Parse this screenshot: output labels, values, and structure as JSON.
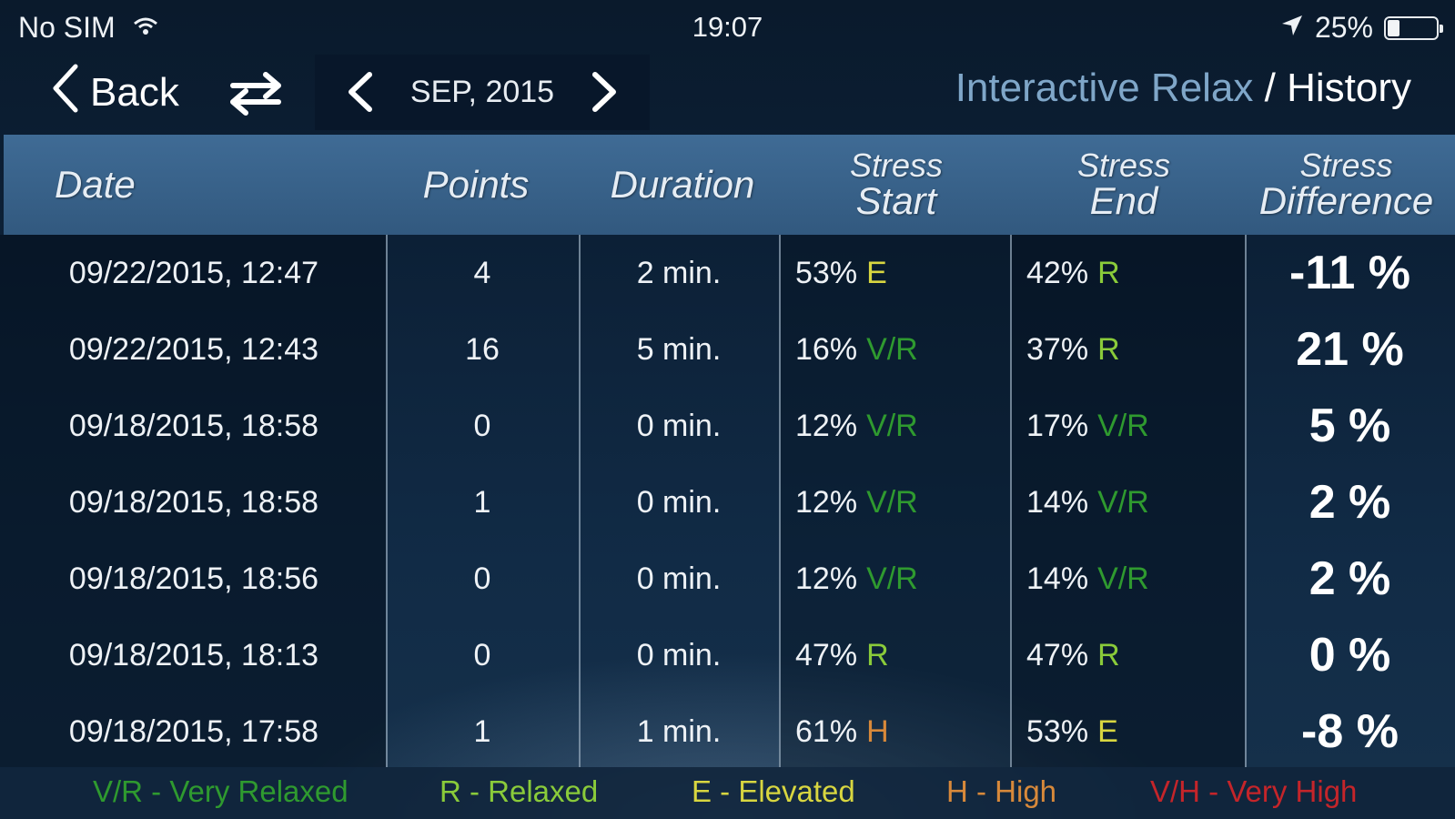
{
  "status_bar": {
    "carrier": "No SIM",
    "time": "19:07",
    "battery": "25%",
    "battery_level": 0.25
  },
  "nav": {
    "back_label": "Back",
    "month": "SEP, 2015",
    "app_name": "Interactive Relax",
    "separator": " / ",
    "section": "History"
  },
  "table": {
    "headers": {
      "date": "Date",
      "points": "Points",
      "duration": "Duration",
      "stress_start": [
        "Stress",
        "Start"
      ],
      "stress_end": [
        "Stress",
        "End"
      ],
      "stress_difference": [
        "Stress",
        "Difference"
      ]
    },
    "rows": [
      {
        "date": "09/22/2015, 12:47",
        "points": "4",
        "duration": "2 min.",
        "start_pct": "53%",
        "start_level": "E",
        "end_pct": "42%",
        "end_level": "R",
        "difference": "-11 %"
      },
      {
        "date": "09/22/2015, 12:43",
        "points": "16",
        "duration": "5 min.",
        "start_pct": "16%",
        "start_level": "V/R",
        "end_pct": "37%",
        "end_level": "R",
        "difference": "21 %"
      },
      {
        "date": "09/18/2015, 18:58",
        "points": "0",
        "duration": "0 min.",
        "start_pct": "12%",
        "start_level": "V/R",
        "end_pct": "17%",
        "end_level": "V/R",
        "difference": "5 %"
      },
      {
        "date": "09/18/2015, 18:58",
        "points": "1",
        "duration": "0 min.",
        "start_pct": "12%",
        "start_level": "V/R",
        "end_pct": "14%",
        "end_level": "V/R",
        "difference": "2 %"
      },
      {
        "date": "09/18/2015, 18:56",
        "points": "0",
        "duration": "0 min.",
        "start_pct": "12%",
        "start_level": "V/R",
        "end_pct": "14%",
        "end_level": "V/R",
        "difference": "2 %"
      },
      {
        "date": "09/18/2015, 18:13",
        "points": "0",
        "duration": "0 min.",
        "start_pct": "47%",
        "start_level": "R",
        "end_pct": "47%",
        "end_level": "R",
        "difference": "0 %"
      },
      {
        "date": "09/18/2015, 17:58",
        "points": "1",
        "duration": "1 min.",
        "start_pct": "61%",
        "start_level": "H",
        "end_pct": "53%",
        "end_level": "E",
        "difference": "-8 %"
      }
    ]
  },
  "legend": [
    {
      "code": "V/R",
      "label": "V/R - Very Relaxed",
      "color": "#2f9a2f"
    },
    {
      "code": "R",
      "label": "R - Relaxed",
      "color": "#8acb3a"
    },
    {
      "code": "E",
      "label": "E - Elevated",
      "color": "#d8d640"
    },
    {
      "code": "H",
      "label": "H - High",
      "color": "#d8893a"
    },
    {
      "code": "V/H",
      "label": "V/H - Very High",
      "color": "#c4252a"
    }
  ],
  "level_colors": {
    "V/R": "#2f9a2f",
    "R": "#8acb3a",
    "E": "#d8d640",
    "H": "#d8893a",
    "V/H": "#c4252a"
  }
}
